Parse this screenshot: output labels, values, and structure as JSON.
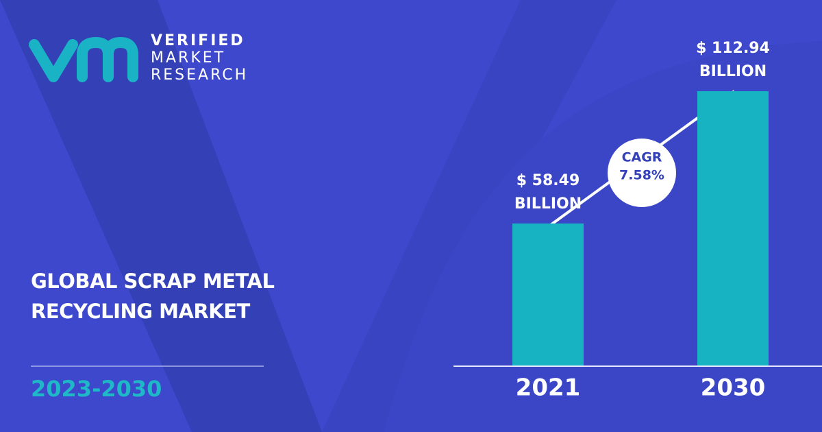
{
  "brand": {
    "line1": "VERIFIED",
    "line2": "MARKET",
    "line3": "RESEARCH"
  },
  "chart_data": {
    "type": "bar",
    "title": "GLOBAL SCRAP METAL RECYCLING MARKET",
    "subtitle": "2023-2030",
    "categories": [
      "2021",
      "2030"
    ],
    "values": [
      58.49,
      112.94
    ],
    "value_labels": [
      "$ 58.49 BILLION",
      "$ 112.94 BILLION"
    ],
    "color": "#17b3c2",
    "annotation": {
      "label": "CAGR",
      "text": "7.58%"
    }
  }
}
